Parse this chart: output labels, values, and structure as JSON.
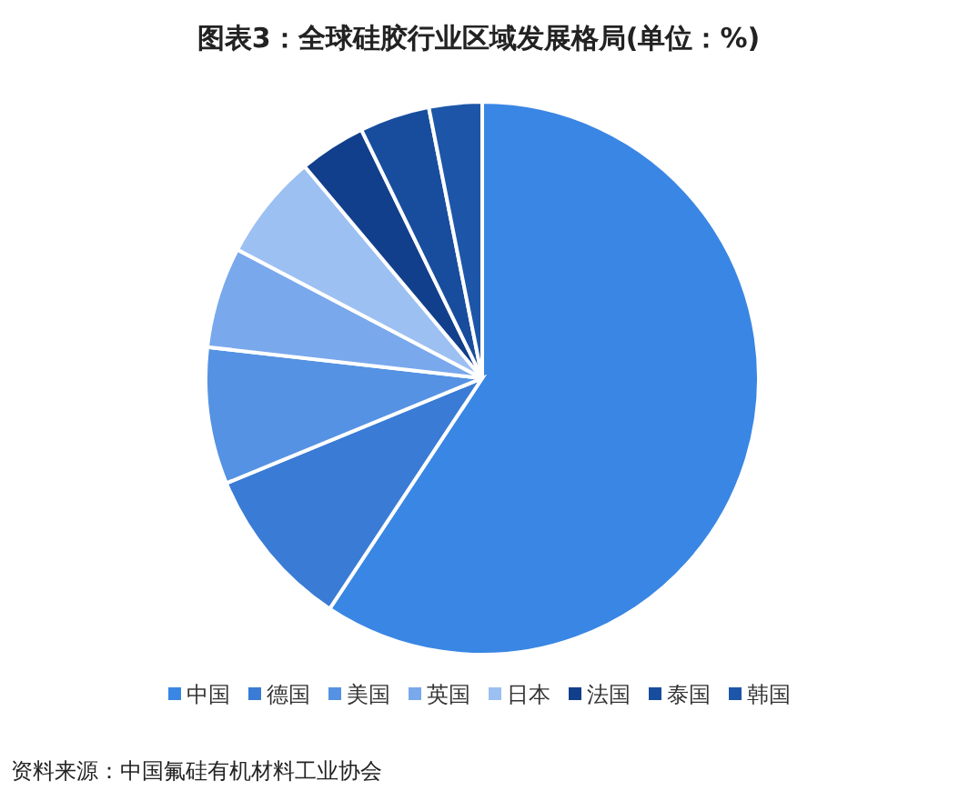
{
  "chart_data": {
    "type": "pie",
    "title": "图表3：全球硅胶行业区域发展格局(单位：%)",
    "categories": [
      "中国",
      "德国",
      "美国",
      "英国",
      "日本",
      "法国",
      "泰国",
      "韩国"
    ],
    "values": [
      59.3,
      9.5,
      8.0,
      5.9,
      6.2,
      3.9,
      4.1,
      3.1
    ],
    "colors": [
      "#3a86e4",
      "#3a7bd5",
      "#5592e3",
      "#79a8ec",
      "#9cc0f2",
      "#123f8c",
      "#184d9e",
      "#1d56a8"
    ],
    "legend": "bottom",
    "annotations": [
      "资料来源：中国氟硅有机材料工业协会"
    ]
  }
}
